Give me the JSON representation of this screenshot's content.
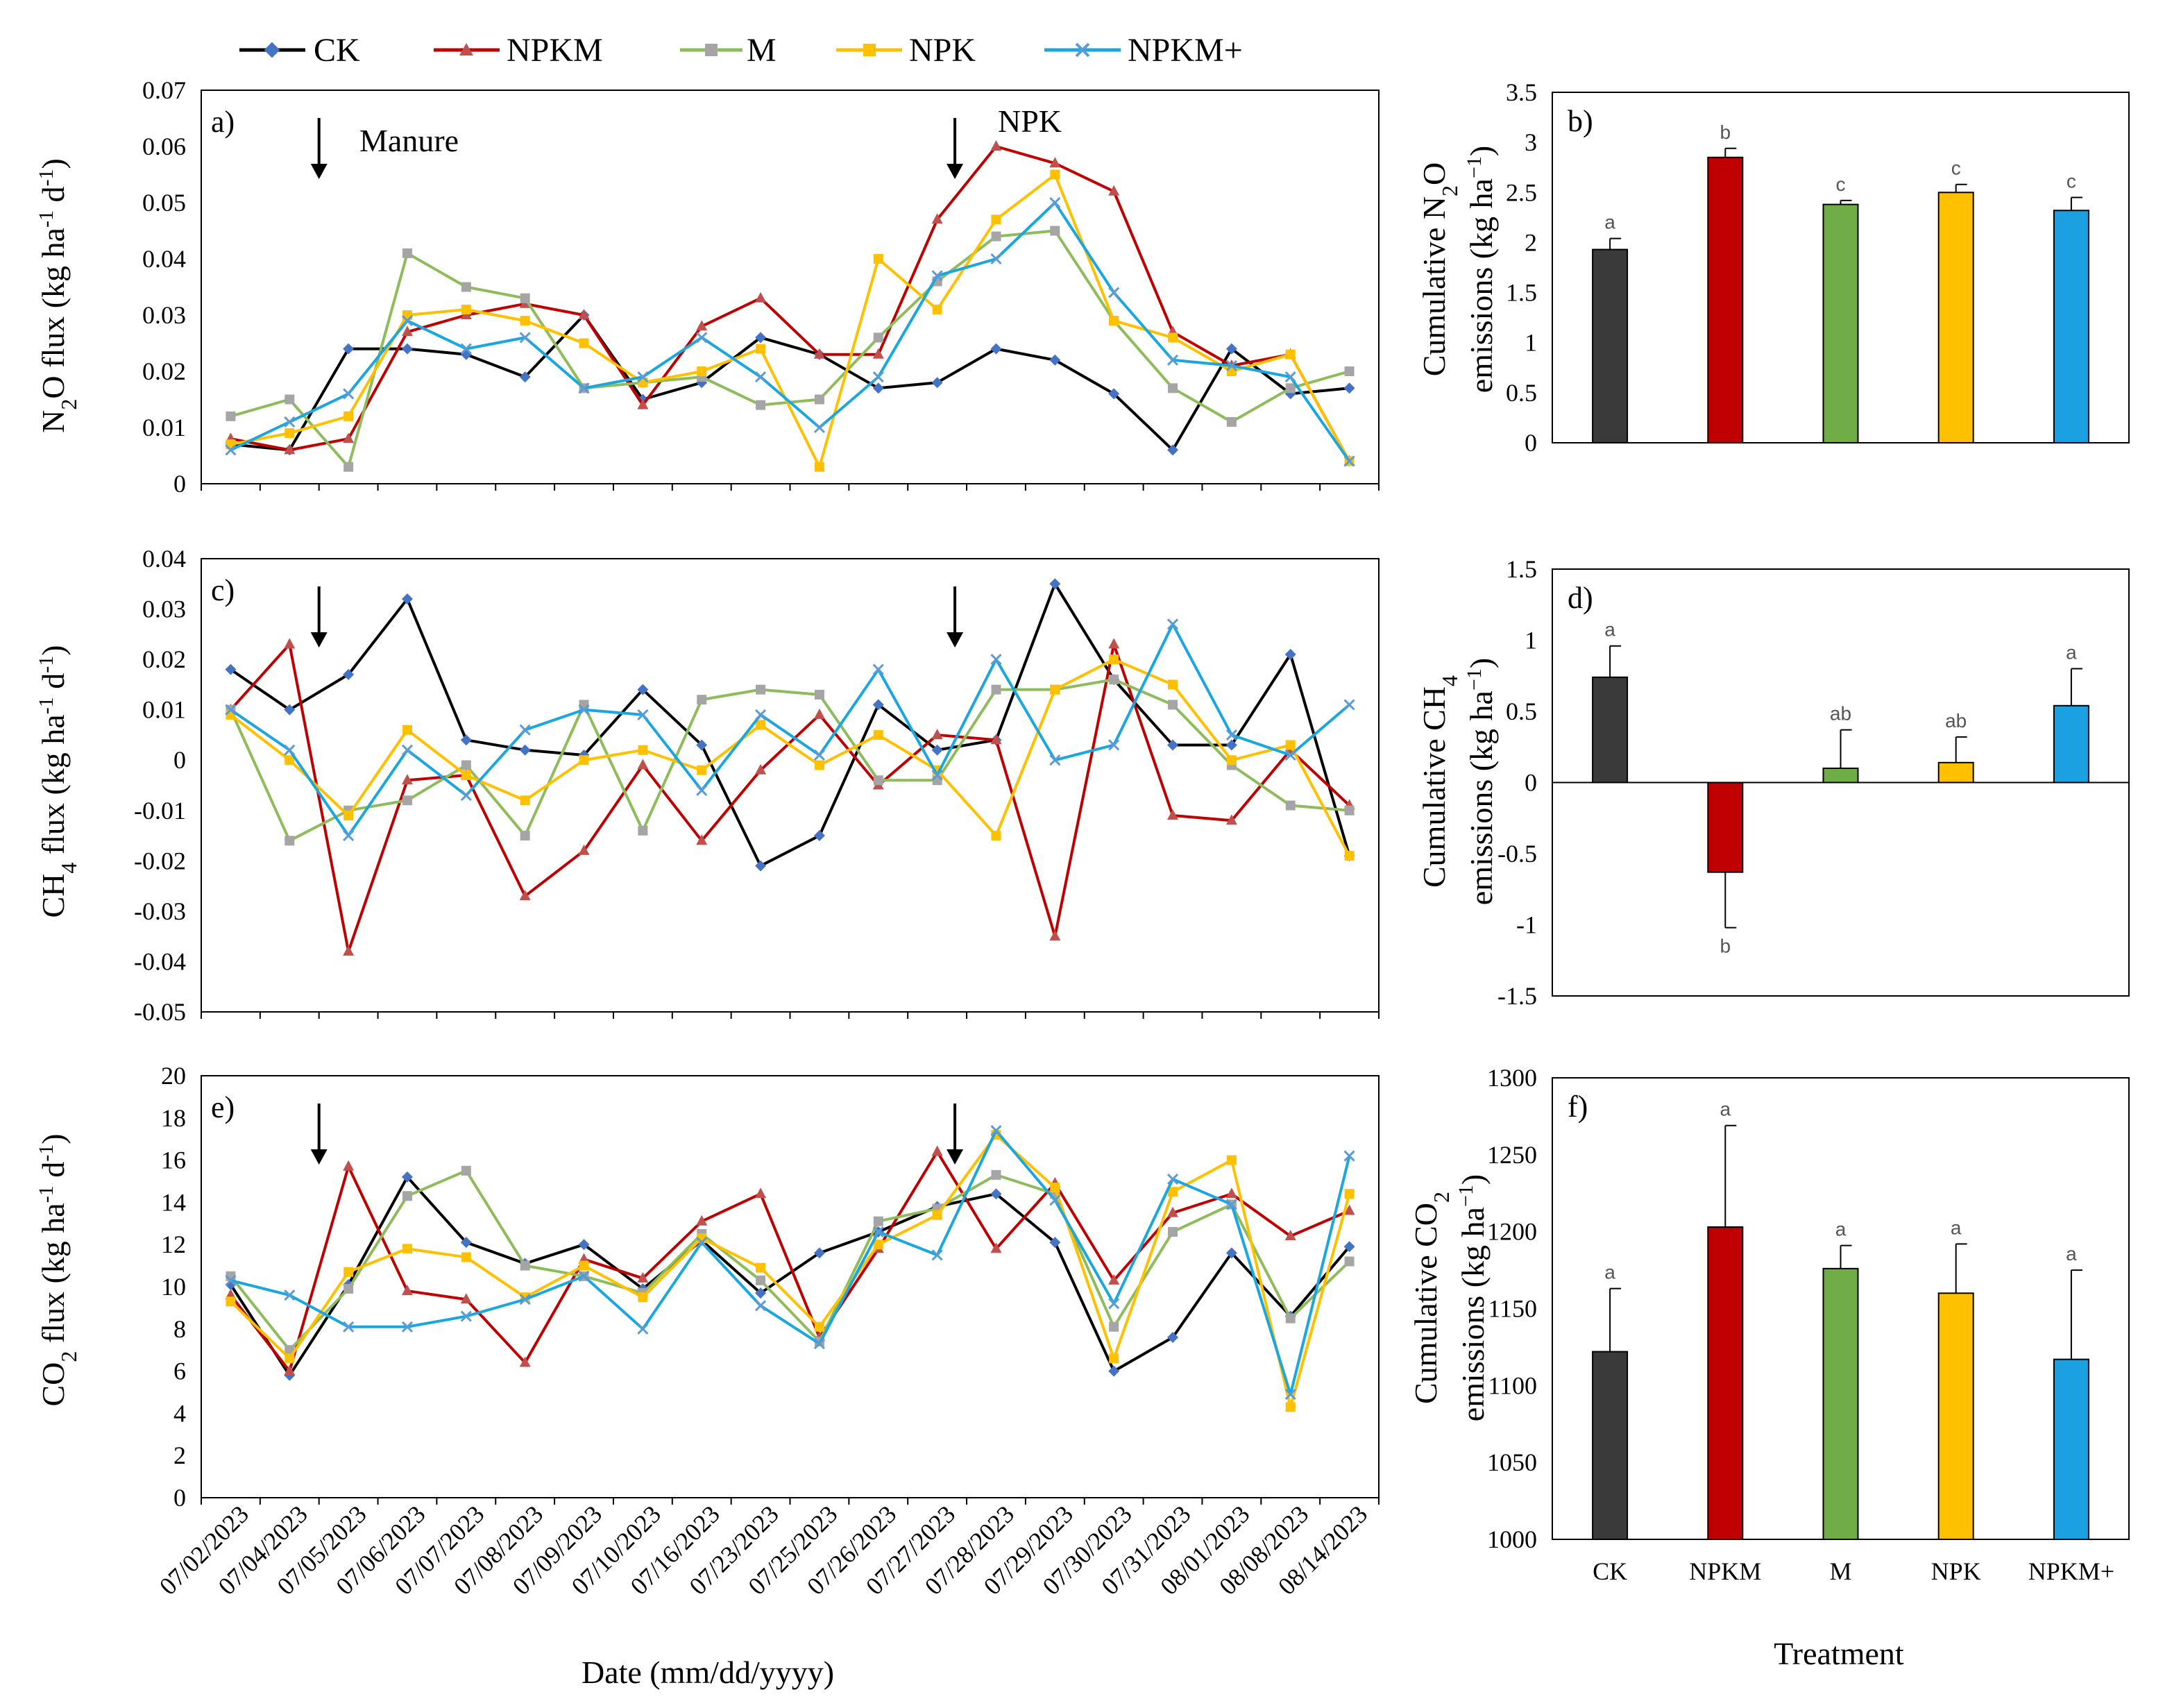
{
  "legend": {
    "series": [
      {
        "name": "CK",
        "color": "#000000",
        "marker_color": "#4472c4",
        "marker": "diamond"
      },
      {
        "name": "NPKM",
        "color": "#c00000",
        "marker_color": "#c0504d",
        "marker": "triangle"
      },
      {
        "name": "M",
        "color": "#8fbc5a",
        "marker_color": "#a5a5a5",
        "marker": "square"
      },
      {
        "name": "NPK",
        "color": "#ffc000",
        "marker_color": "#ffc000",
        "marker": "square"
      },
      {
        "name": "NPKM+",
        "color": "#1aa7e0",
        "marker_color": "#5b9bd5",
        "marker": "x"
      }
    ]
  },
  "x_axis": {
    "title": "Date (mm/dd/yyyy)",
    "dates": [
      "07/02/2023",
      "07/04/2023",
      "07/05/2023",
      "07/06/2023",
      "07/07/2023",
      "07/08/2023",
      "07/09/2023",
      "07/10/2023",
      "07/16/2023",
      "07/23/2023",
      "07/25/2023",
      "07/26/2023",
      "07/27/2023",
      "07/28/2023",
      "07/29/2023",
      "07/30/2023",
      "07/31/2023",
      "08/01/2023",
      "08/08/2023",
      "08/14/2023"
    ]
  },
  "bar_axis": {
    "title": "Treatment",
    "categories": [
      "CK",
      "NPKM",
      "M",
      "NPK",
      "NPKM+"
    ],
    "colors": [
      "#3a3a3a",
      "#c00000",
      "#70ad47",
      "#ffc000",
      "#1ba1e2"
    ]
  },
  "annotations": {
    "manure": "Manure",
    "npk": "NPK"
  },
  "chart_data": [
    {
      "panel": "a)",
      "type": "line",
      "ylabel": "N2O flux (kg ha-1 d-1)",
      "ylim": [
        0,
        0.07
      ],
      "yticks": [
        "0",
        "0.01",
        "0.02",
        "0.03",
        "0.04",
        "0.05",
        "0.06",
        "0.07"
      ],
      "n_points": 20,
      "arrows": [
        1.5,
        12.3
      ],
      "series": [
        {
          "name": "CK",
          "values": [
            0.007,
            0.006,
            0.024,
            0.024,
            0.023,
            0.019,
            0.03,
            0.015,
            0.018,
            0.026,
            0.023,
            0.017,
            0.018,
            0.024,
            0.022,
            0.016,
            0.006,
            0.024,
            0.016,
            0.017
          ]
        },
        {
          "name": "NPKM",
          "values": [
            0.008,
            0.006,
            0.008,
            0.027,
            0.03,
            0.032,
            0.03,
            0.014,
            0.028,
            0.033,
            0.023,
            0.023,
            0.047,
            0.06,
            0.057,
            0.052,
            0.027,
            0.021,
            0.023,
            0.004
          ]
        },
        {
          "name": "M",
          "values": [
            0.012,
            0.015,
            0.003,
            0.041,
            0.035,
            0.033,
            0.017,
            0.018,
            0.019,
            0.014,
            0.015,
            0.026,
            0.036,
            0.044,
            0.045,
            0.029,
            0.017,
            0.011,
            0.017,
            0.02
          ]
        },
        {
          "name": "NPK",
          "values": [
            0.007,
            0.009,
            0.012,
            0.03,
            0.031,
            0.029,
            0.025,
            0.018,
            0.02,
            0.024,
            0.003,
            0.04,
            0.031,
            0.047,
            0.055,
            0.029,
            0.026,
            0.02,
            0.023,
            0.004
          ]
        },
        {
          "name": "NPKM+",
          "values": [
            0.006,
            0.011,
            0.016,
            0.029,
            0.024,
            0.026,
            0.017,
            0.019,
            0.026,
            0.019,
            0.01,
            0.019,
            0.037,
            0.04,
            0.05,
            0.034,
            0.022,
            0.021,
            0.019,
            0.004
          ]
        }
      ]
    },
    {
      "panel": "c)",
      "type": "line",
      "ylabel": "CH4 flux (kg ha-1 d-1)",
      "ylim": [
        -0.05,
        0.04
      ],
      "yticks": [
        "-0.05",
        "-0.04",
        "-0.03",
        "-0.02",
        "-0.01",
        "0",
        "0.01",
        "0.02",
        "0.03",
        "0.04"
      ],
      "n_points": 20,
      "arrows": [
        1.5,
        12.3
      ],
      "series": [
        {
          "name": "CK",
          "values": [
            0.018,
            0.01,
            0.017,
            0.032,
            0.004,
            0.002,
            0.001,
            0.014,
            0.003,
            -0.021,
            -0.015,
            0.011,
            0.002,
            0.004,
            0.035,
            0.016,
            0.003,
            0.003,
            0.021,
            -0.019
          ]
        },
        {
          "name": "NPKM",
          "values": [
            0.01,
            0.023,
            -0.038,
            -0.004,
            -0.003,
            -0.027,
            -0.018,
            -0.001,
            -0.016,
            -0.002,
            0.009,
            -0.005,
            0.005,
            0.004,
            -0.035,
            0.023,
            -0.011,
            -0.012,
            0.002,
            -0.009
          ]
        },
        {
          "name": "M",
          "values": [
            0.01,
            -0.016,
            -0.01,
            -0.008,
            -0.001,
            -0.015,
            0.011,
            -0.014,
            0.012,
            0.014,
            0.013,
            -0.004,
            -0.004,
            0.014,
            0.014,
            0.016,
            0.011,
            -0.001,
            -0.009,
            -0.01
          ]
        },
        {
          "name": "NPK",
          "values": [
            0.009,
            0.0,
            -0.011,
            0.006,
            -0.003,
            -0.008,
            0.0,
            0.002,
            -0.002,
            0.007,
            -0.001,
            0.005,
            -0.002,
            -0.015,
            0.014,
            0.02,
            0.015,
            0.0,
            0.003,
            -0.019
          ]
        },
        {
          "name": "NPKM+",
          "values": [
            0.01,
            0.002,
            -0.015,
            0.002,
            -0.007,
            0.006,
            0.01,
            0.009,
            -0.006,
            0.009,
            0.001,
            0.018,
            -0.003,
            0.02,
            0.0,
            0.003,
            0.027,
            0.005,
            0.001,
            0.011
          ]
        }
      ]
    },
    {
      "panel": "e)",
      "type": "line",
      "ylabel": "CO2 flux (kg ha-1 d-1)",
      "ylim": [
        0,
        20
      ],
      "yticks": [
        "0",
        "2",
        "4",
        "6",
        "8",
        "10",
        "12",
        "14",
        "16",
        "18",
        "20"
      ],
      "n_points": 20,
      "arrows": [
        1.5,
        12.3
      ],
      "series": [
        {
          "name": "CK",
          "values": [
            10.1,
            5.8,
            10.1,
            15.2,
            12.1,
            11.1,
            12.0,
            9.9,
            12.2,
            9.7,
            11.6,
            12.6,
            13.8,
            14.4,
            12.1,
            6.0,
            7.6,
            11.6,
            8.6,
            11.9
          ]
        },
        {
          "name": "NPKM",
          "values": [
            9.6,
            6.0,
            15.7,
            9.8,
            9.4,
            6.4,
            11.3,
            10.4,
            13.1,
            14.4,
            7.6,
            11.8,
            16.4,
            11.8,
            14.9,
            10.3,
            13.5,
            14.4,
            12.4,
            13.6
          ]
        },
        {
          "name": "M",
          "values": [
            10.5,
            7.0,
            9.9,
            14.3,
            15.5,
            11.0,
            10.5,
            9.7,
            12.5,
            10.3,
            7.4,
            13.1,
            13.7,
            15.3,
            14.4,
            8.1,
            12.6,
            13.9,
            8.5,
            11.2
          ]
        },
        {
          "name": "NPK",
          "values": [
            9.3,
            6.6,
            10.7,
            11.8,
            11.4,
            9.5,
            11.0,
            9.5,
            12.3,
            10.9,
            8.1,
            12.0,
            13.4,
            17.2,
            14.7,
            6.6,
            14.5,
            16.0,
            4.3,
            14.4
          ]
        },
        {
          "name": "NPKM+",
          "values": [
            10.3,
            9.6,
            8.1,
            8.1,
            8.6,
            9.4,
            10.5,
            8.0,
            12.1,
            9.1,
            7.3,
            12.6,
            11.5,
            17.4,
            14.1,
            9.2,
            15.1,
            13.9,
            4.9,
            16.2
          ]
        }
      ]
    },
    {
      "panel": "b)",
      "type": "bar",
      "ylabel": "Cumulative N2O emissions (kg ha-1)",
      "ylim": [
        0,
        3.5
      ],
      "yticks": [
        "0",
        "0.5",
        "1",
        "1.5",
        "2",
        "2.5",
        "3",
        "3.5"
      ],
      "categories": [
        "CK",
        "NPKM",
        "M",
        "NPK",
        "NPKM+"
      ],
      "values": [
        1.93,
        2.85,
        2.38,
        2.5,
        2.32
      ],
      "errors": [
        0.11,
        0.09,
        0.04,
        0.08,
        0.13
      ],
      "letters": [
        "a",
        "b",
        "c",
        "c",
        "c"
      ]
    },
    {
      "panel": "d)",
      "type": "bar",
      "ylabel": "Cumulative CH4 emissions (kg ha-1)",
      "ylim": [
        -1.5,
        1.5
      ],
      "yticks": [
        "-1.5",
        "-1",
        "-0.5",
        "0",
        "0.5",
        "1",
        "1.5"
      ],
      "categories": [
        "CK",
        "NPKM",
        "M",
        "NPK",
        "NPKM+"
      ],
      "values": [
        0.74,
        -0.63,
        0.1,
        0.14,
        0.54
      ],
      "errors": [
        0.22,
        0.39,
        0.27,
        0.18,
        0.26
      ],
      "letters": [
        "a",
        "b",
        "ab",
        "ab",
        "a"
      ]
    },
    {
      "panel": "f)",
      "type": "bar",
      "ylabel": "Cumulative CO2 emissions (kg ha-1)",
      "ylim": [
        1000,
        1300
      ],
      "yticks": [
        "1000",
        "1050",
        "1100",
        "1150",
        "1200",
        "1250",
        "1300"
      ],
      "categories": [
        "CK",
        "NPKM",
        "M",
        "NPK",
        "NPKM+"
      ],
      "values": [
        1122,
        1203,
        1176,
        1160,
        1117
      ],
      "errors": [
        41,
        66,
        15,
        32,
        58
      ],
      "letters": [
        "a",
        "a",
        "a",
        "a",
        "a"
      ]
    }
  ]
}
